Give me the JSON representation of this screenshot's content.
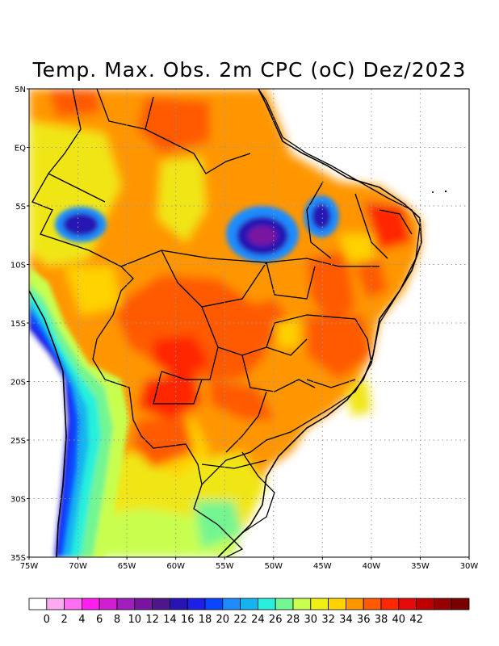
{
  "title": "Temp. Max. Obs. 2m CPC (oC) Dez/2023",
  "map": {
    "lat_labels": [
      "5N",
      "EQ",
      "5S",
      "10S",
      "15S",
      "20S",
      "25S",
      "30S",
      "35S"
    ],
    "lon_labels": [
      "75W",
      "70W",
      "65W",
      "60W",
      "55W",
      "50W",
      "45W",
      "40W",
      "35W",
      "30W"
    ],
    "lat_range": [
      -35,
      5
    ],
    "lon_range": [
      -75,
      -30
    ],
    "grid": "dotted"
  },
  "colorbar": {
    "colors": [
      "#ffffff",
      "#ffaaf0",
      "#ff6ef0",
      "#ff1ef0",
      "#d21ed2",
      "#a01ebe",
      "#7814a0",
      "#50148c",
      "#2814b4",
      "#1e1ee6",
      "#0a46ff",
      "#1e8cff",
      "#14b4f0",
      "#28f0dc",
      "#73f591",
      "#c8ff50",
      "#f0f014",
      "#ffd200",
      "#ff9600",
      "#ff5a00",
      "#ff2800",
      "#e60a0a",
      "#be0000",
      "#960000",
      "#780000"
    ],
    "labels": [
      "0",
      "2",
      "4",
      "6",
      "8",
      "10",
      "12",
      "14",
      "16",
      "18",
      "20",
      "22",
      "24",
      "26",
      "28",
      "30",
      "32",
      "34",
      "36",
      "38",
      "40",
      "42"
    ]
  }
}
